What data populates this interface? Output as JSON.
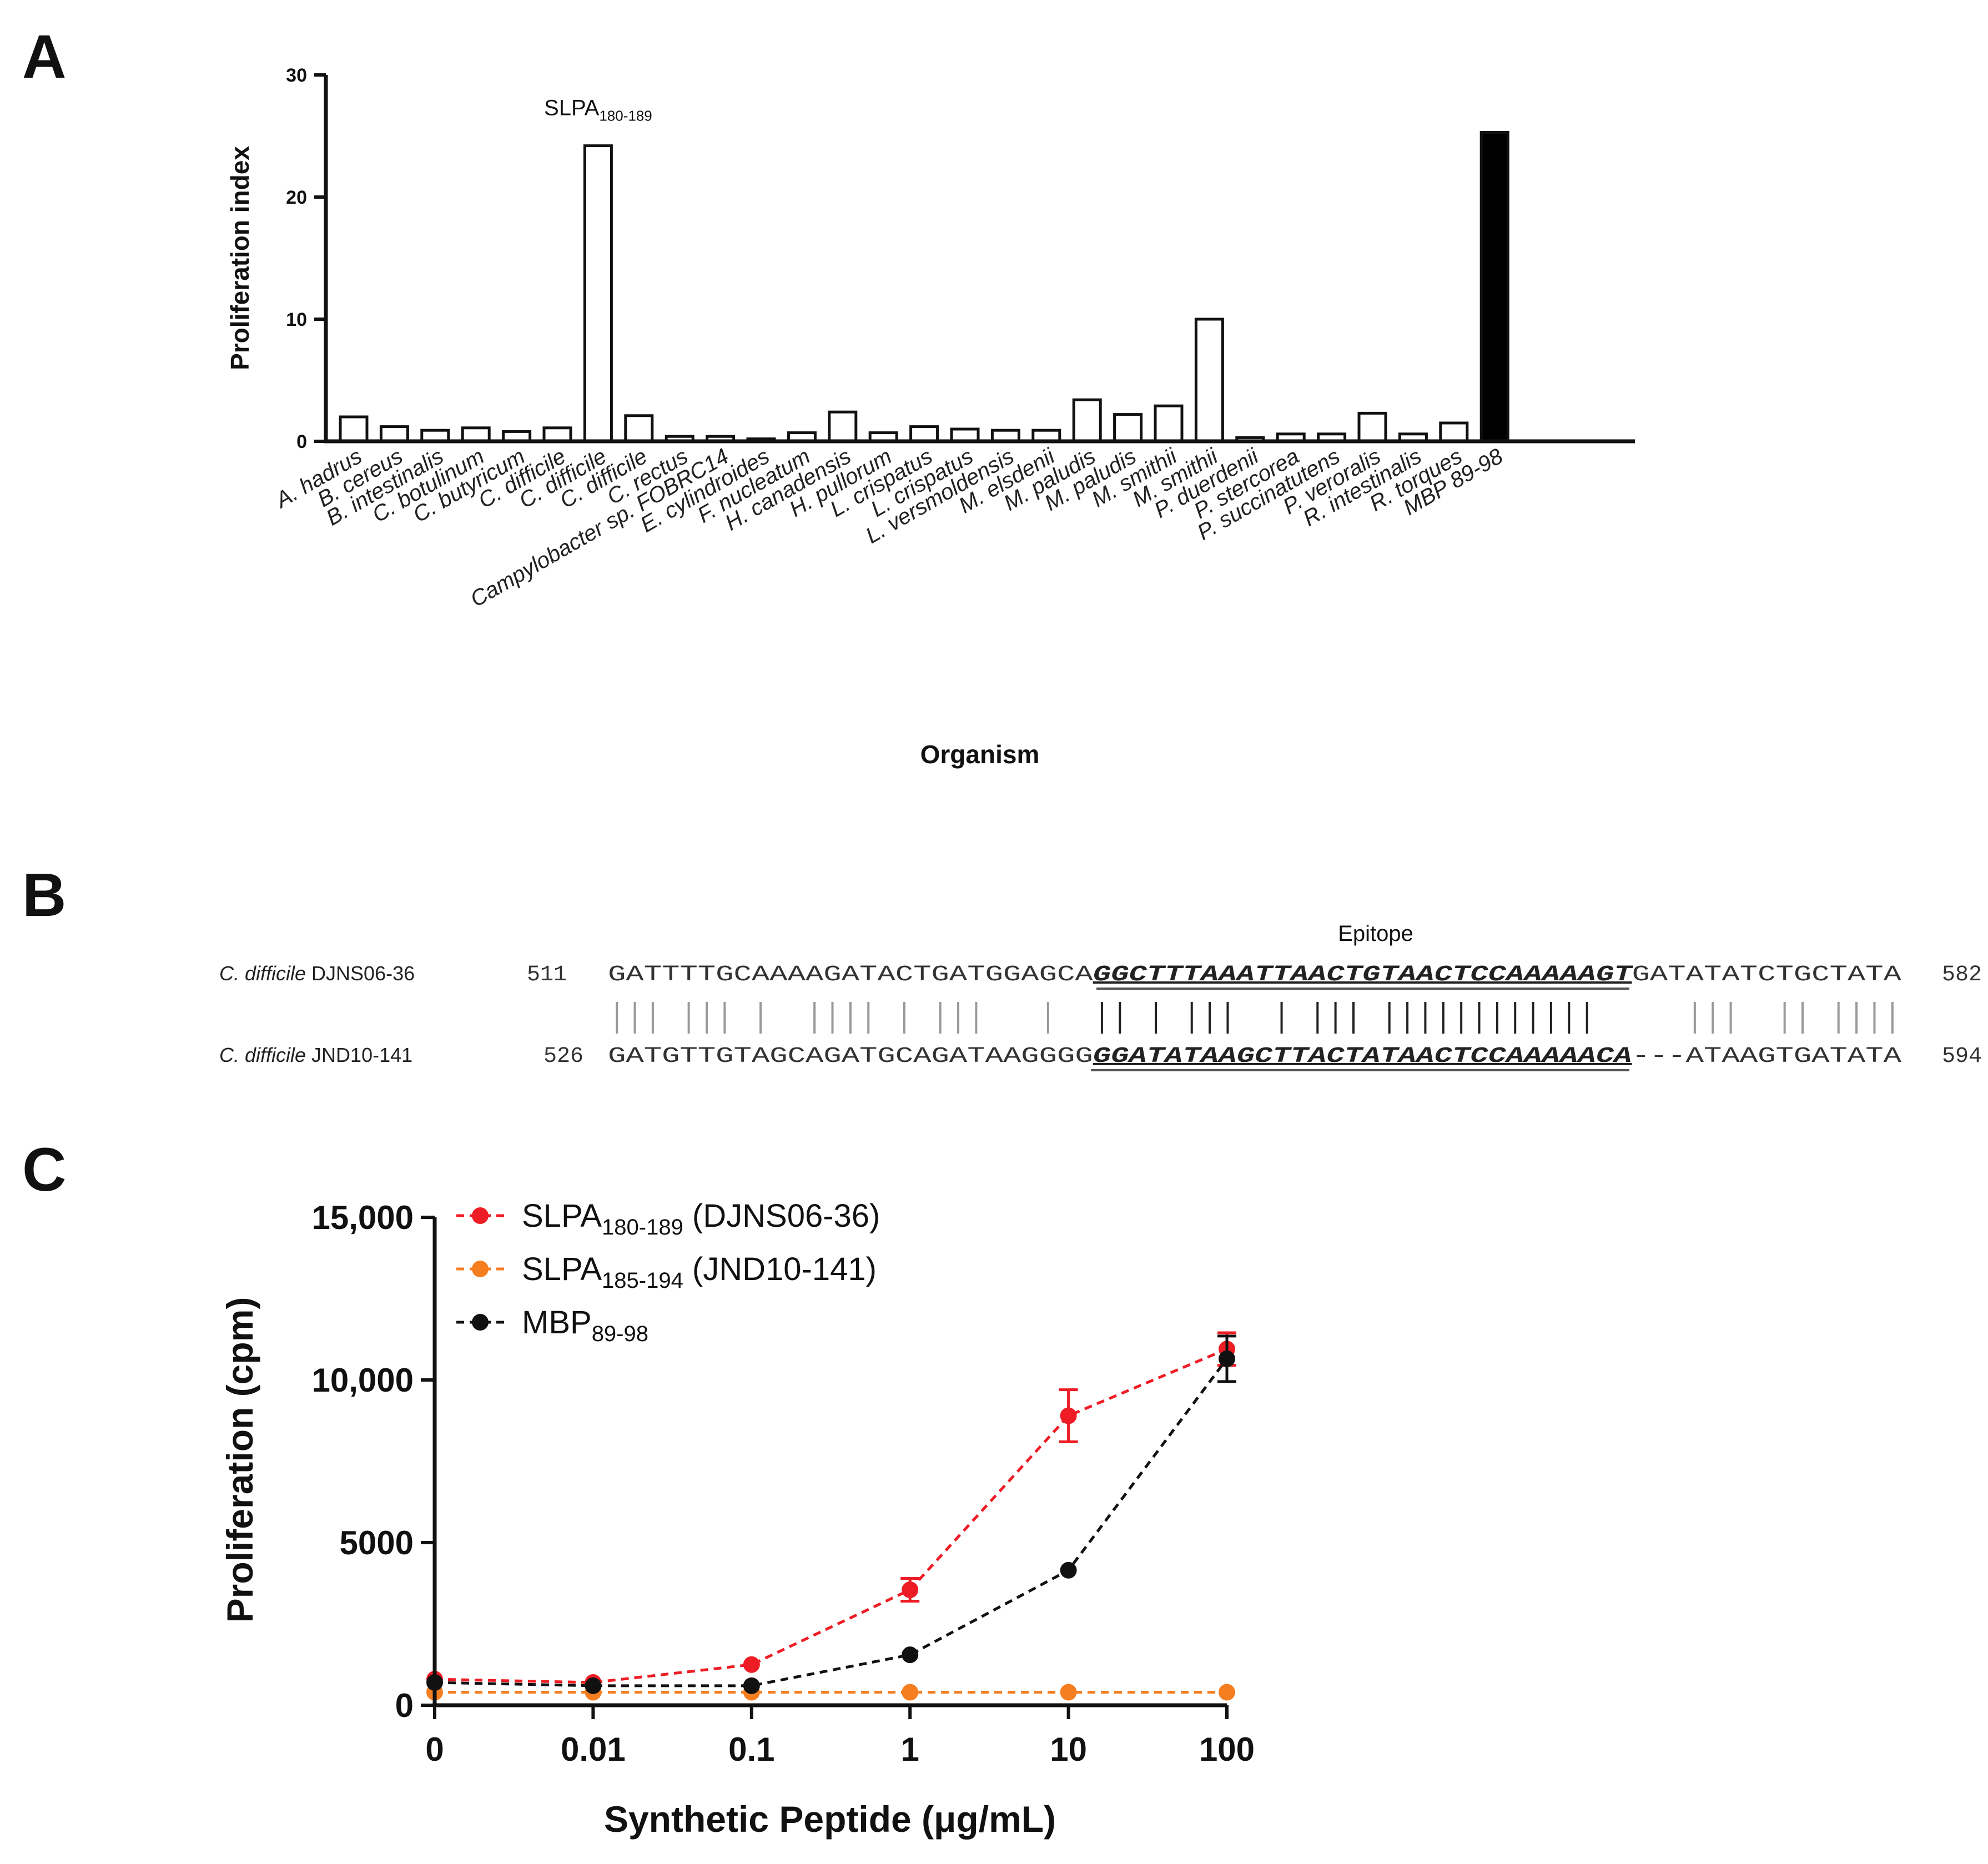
{
  "panels": {
    "a": "A",
    "b": "B",
    "c": "C"
  },
  "chart_data": [
    {
      "type": "bar",
      "panel": "A",
      "title": "",
      "xlabel": "Organism",
      "ylabel": "Proliferation index",
      "ylim": [
        0,
        30
      ],
      "yticks": [
        0,
        10,
        20,
        30
      ],
      "categories": [
        "A. hadrus",
        "B. cereus",
        "B. intestinalis",
        "C. botulinum",
        "C. butyricum",
        "C. difficile",
        "C. difficile",
        "C. difficile",
        "C. rectus",
        "Campylobacter sp. FOBRC14",
        "E. cylindroides",
        "F. nucleatum",
        "H. canadensis",
        "H. pullorum",
        "L. crispatus",
        "L. crispatus",
        "L. versmoldensis",
        "M. elsdenii",
        "M. paludis",
        "M. paludis",
        "M. smithii",
        "M. smithii",
        "P. duerdenii",
        "P. stercorea",
        "P. succinatutens",
        "P. veroralis",
        "R. intestinalis",
        "R. torques",
        "MBP 89-98"
      ],
      "values": [
        2.0,
        1.2,
        0.9,
        1.1,
        0.8,
        1.1,
        24.2,
        2.1,
        0.4,
        0.4,
        0.2,
        0.7,
        2.4,
        0.7,
        1.2,
        1.0,
        0.9,
        0.9,
        3.4,
        2.2,
        2.9,
        10.0,
        0.3,
        0.6,
        0.6,
        2.3,
        0.6,
        1.5,
        25.3
      ],
      "fills": [
        "#ffffff",
        "#ffffff",
        "#ffffff",
        "#ffffff",
        "#ffffff",
        "#ffffff",
        "#ffffff",
        "#ffffff",
        "#ffffff",
        "#ffffff",
        "#ffffff",
        "#ffffff",
        "#ffffff",
        "#ffffff",
        "#ffffff",
        "#ffffff",
        "#ffffff",
        "#ffffff",
        "#ffffff",
        "#ffffff",
        "#ffffff",
        "#ffffff",
        "#ffffff",
        "#ffffff",
        "#ffffff",
        "#ffffff",
        "#ffffff",
        "#ffffff",
        "#000000"
      ],
      "annotation": {
        "category_index": 6,
        "text": "SLPA",
        "subscript": "180-189"
      }
    },
    {
      "type": "line",
      "panel": "C",
      "title": "",
      "xlabel": "Synthetic Peptide (μg/mL)",
      "ylabel": "Proliferation (cpm)",
      "x_categories": [
        "0",
        "0.01",
        "0.1",
        "1",
        "10",
        "100"
      ],
      "ylim": [
        0,
        15000
      ],
      "yticks": [
        0,
        5000,
        10000,
        15000
      ],
      "ytick_labels": [
        "0",
        "5000",
        "10,000",
        "15,000"
      ],
      "series": [
        {
          "name": "SLPA",
          "sub": "180-189",
          "suffix": " (DJNS06-36)",
          "color": "#ee1c24",
          "values": [
            800,
            700,
            1250,
            3550,
            8900,
            10950
          ],
          "errors": [
            0,
            0,
            0,
            350,
            800,
            500
          ]
        },
        {
          "name": "SLPA",
          "sub": "185-194",
          "suffix": " (JND10-141)",
          "color": "#f57e20",
          "values": [
            400,
            400,
            400,
            400,
            400,
            400
          ],
          "errors": [
            0,
            0,
            0,
            0,
            0,
            0
          ]
        },
        {
          "name": "MBP",
          "sub": "89-98",
          "suffix": "",
          "color": "#111111",
          "values": [
            700,
            600,
            600,
            1550,
            4150,
            10650
          ],
          "errors": [
            0,
            0,
            0,
            0,
            0,
            700
          ]
        }
      ]
    }
  ],
  "alignment": {
    "epitope_label": "Epitope",
    "top": {
      "species": "C. difficile",
      "strain": " DJNS06-36",
      "start": "511",
      "end": "582",
      "pre": "GATTTTGCAAAAGATACTGATGGAGCA",
      "epitope": "GGCTTTAAATTAACTGTAACTCCAAAAAGT",
      "post": "GATATATCTGCTATA"
    },
    "bottom": {
      "species": "C. difficile",
      "strain": " JND10-141",
      "start": "526",
      "end": "594",
      "pre": "GATGTTGTAGCAGATGCAGATAAGGGG",
      "epitope": "GGATATAAGCTTACTATAACTCCAAAAACA",
      "post": "---ATAAGTGATATA"
    }
  }
}
